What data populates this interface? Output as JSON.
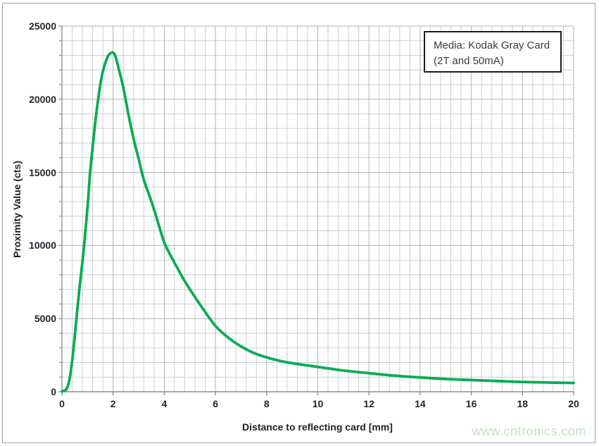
{
  "page": {
    "watermark": "www.cntronics.com"
  },
  "chart_data": {
    "type": "line",
    "title": "",
    "xlabel": "Distance to reflecting card [mm]",
    "ylabel": "Proximity Value (cts)",
    "xlim": [
      0,
      20
    ],
    "ylim": [
      0,
      25000
    ],
    "x_major": 2,
    "x_minor": 0.4,
    "y_major": 5000,
    "y_minor": 1000,
    "x_tick_labels": [
      "0",
      "2",
      "4",
      "6",
      "8",
      "10",
      "12",
      "14",
      "16",
      "18",
      "20"
    ],
    "y_tick_labels": [
      "0",
      "5000",
      "10000",
      "15000",
      "20000",
      "25000"
    ],
    "grid": "both-major-and-minor",
    "legend_position": "top-right-inside",
    "legend": {
      "line1": "Media: Kodak Gray Card",
      "line2": "(2T and 50mA)"
    },
    "annotation": "Media: Kodak Gray Card (2T and 50mA)",
    "colors": {
      "series": "#0cac52",
      "grid_minor": "#cdcfd1",
      "grid_major": "#b1b3b5",
      "axis": "#8a8d90",
      "tick_text": "#23262e",
      "watermark": "#c3e3c0",
      "legend_border": "#1b1b1b"
    },
    "series": [
      {
        "name": "Proximity value vs distance (Kodak Gray Card, 2T, 50mA)",
        "color": "#0cac52",
        "points": [
          [
            0,
            30
          ],
          [
            0.1,
            80
          ],
          [
            0.2,
            250
          ],
          [
            0.3,
            900
          ],
          [
            0.4,
            2100
          ],
          [
            0.5,
            3800
          ],
          [
            0.6,
            5600
          ],
          [
            0.7,
            7300
          ],
          [
            0.8,
            8900
          ],
          [
            0.9,
            10600
          ],
          [
            1.0,
            12600
          ],
          [
            1.1,
            15000
          ],
          [
            1.2,
            16700
          ],
          [
            1.3,
            18400
          ],
          [
            1.4,
            19800
          ],
          [
            1.5,
            21000
          ],
          [
            1.6,
            21900
          ],
          [
            1.7,
            22500
          ],
          [
            1.8,
            22950
          ],
          [
            1.9,
            23150
          ],
          [
            2.0,
            23180
          ],
          [
            2.1,
            22900
          ],
          [
            2.2,
            22200
          ],
          [
            2.4,
            20800
          ],
          [
            2.6,
            18950
          ],
          [
            2.8,
            17300
          ],
          [
            3.0,
            15900
          ],
          [
            3.2,
            14500
          ],
          [
            3.5,
            13000
          ],
          [
            3.75,
            11600
          ],
          [
            4.0,
            10200
          ],
          [
            4.25,
            9300
          ],
          [
            4.5,
            8500
          ],
          [
            4.75,
            7700
          ],
          [
            5.0,
            7000
          ],
          [
            5.5,
            5700
          ],
          [
            6.0,
            4500
          ],
          [
            6.5,
            3700
          ],
          [
            7.0,
            3100
          ],
          [
            7.5,
            2650
          ],
          [
            8.0,
            2350
          ],
          [
            8.5,
            2120
          ],
          [
            9.0,
            1950
          ],
          [
            10,
            1700
          ],
          [
            11,
            1450
          ],
          [
            12,
            1270
          ],
          [
            13,
            1100
          ],
          [
            14,
            980
          ],
          [
            15,
            870
          ],
          [
            16,
            800
          ],
          [
            17,
            730
          ],
          [
            18,
            670
          ],
          [
            19,
            630
          ],
          [
            20,
            600
          ]
        ]
      }
    ]
  }
}
